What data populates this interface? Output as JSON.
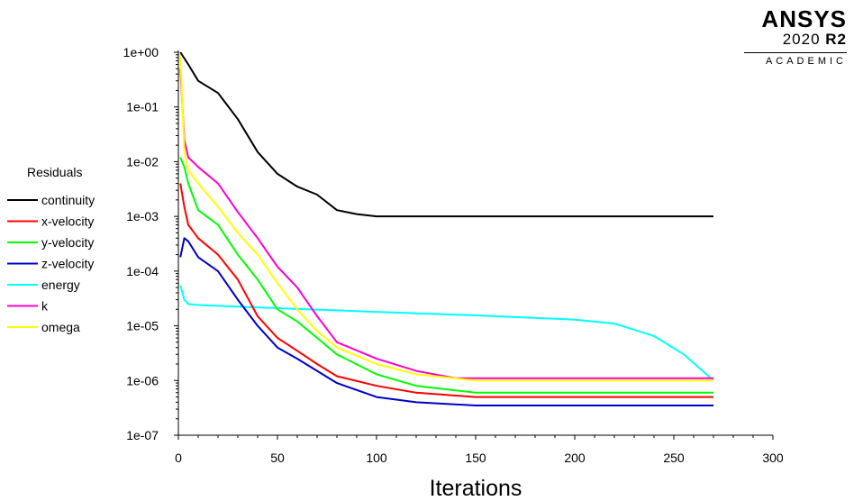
{
  "branding": {
    "product": "ANSYS",
    "version_year": "2020",
    "version_release": "R2",
    "edition": "ACADEMIC"
  },
  "chart_data": {
    "type": "line",
    "title": "",
    "xlabel": "Iterations",
    "ylabel": "",
    "xlim": [
      0,
      300
    ],
    "ylim_log10": [
      -7,
      0
    ],
    "y_scale": "log",
    "x_ticks": [
      0,
      50,
      100,
      150,
      200,
      250,
      300
    ],
    "y_ticks": [
      {
        "value": 1.0,
        "label": "1e+00"
      },
      {
        "value": 0.1,
        "label": "1e-01"
      },
      {
        "value": 0.01,
        "label": "1e-02"
      },
      {
        "value": 0.001,
        "label": "1e-03"
      },
      {
        "value": 0.0001,
        "label": "1e-04"
      },
      {
        "value": 1e-05,
        "label": "1e-05"
      },
      {
        "value": 1e-06,
        "label": "1e-06"
      },
      {
        "value": 1e-07,
        "label": "1e-07"
      }
    ],
    "grid": false,
    "legend_title": "Residuals",
    "legend_position": "left",
    "series": [
      {
        "name": "continuity",
        "color": "#000000",
        "x": [
          1,
          5,
          10,
          20,
          30,
          40,
          50,
          60,
          70,
          80,
          90,
          100,
          150,
          200,
          250,
          270
        ],
        "y": [
          1.0,
          0.6,
          0.3,
          0.18,
          0.06,
          0.015,
          0.006,
          0.0035,
          0.0025,
          0.0013,
          0.0011,
          0.001,
          0.001,
          0.001,
          0.001,
          0.001
        ]
      },
      {
        "name": "x-velocity",
        "color": "#ff0000",
        "x": [
          1,
          3,
          5,
          10,
          20,
          30,
          40,
          50,
          60,
          70,
          80,
          100,
          120,
          150,
          200,
          250,
          270
        ],
        "y": [
          0.004,
          0.0015,
          0.0007,
          0.0004,
          0.0002,
          7e-05,
          1.5e-05,
          6e-06,
          3.5e-06,
          2e-06,
          1.2e-06,
          8e-07,
          6e-07,
          5e-07,
          5e-07,
          5e-07,
          5e-07
        ]
      },
      {
        "name": "y-velocity",
        "color": "#00ff00",
        "x": [
          1,
          3,
          5,
          10,
          20,
          30,
          40,
          50,
          60,
          70,
          80,
          100,
          120,
          150,
          200,
          250,
          270
        ],
        "y": [
          0.012,
          0.008,
          0.004,
          0.0013,
          0.0007,
          0.0002,
          7e-05,
          2e-05,
          1.2e-05,
          6e-06,
          3e-06,
          1.3e-06,
          8e-07,
          6e-07,
          6e-07,
          6e-07,
          6e-07
        ]
      },
      {
        "name": "z-velocity",
        "color": "#0000cc",
        "x": [
          1,
          3,
          5,
          10,
          20,
          30,
          40,
          50,
          60,
          70,
          80,
          100,
          120,
          150,
          200,
          250,
          270
        ],
        "y": [
          0.00018,
          0.0004,
          0.00035,
          0.00018,
          0.0001,
          3e-05,
          1e-05,
          4e-06,
          2.5e-06,
          1.5e-06,
          9e-07,
          5e-07,
          4e-07,
          3.5e-07,
          3.5e-07,
          3.5e-07,
          3.5e-07
        ]
      },
      {
        "name": "energy",
        "color": "#00ffff",
        "x": [
          1,
          3,
          5,
          10,
          50,
          100,
          150,
          200,
          220,
          240,
          255,
          270
        ],
        "y": [
          5.5e-05,
          3e-05,
          2.5e-05,
          2.4e-05,
          2.1e-05,
          1.8e-05,
          1.55e-05,
          1.3e-05,
          1.1e-05,
          6.5e-06,
          3e-06,
          1e-06
        ]
      },
      {
        "name": "k",
        "color": "#ff00cc",
        "x": [
          1,
          3,
          5,
          10,
          20,
          30,
          40,
          50,
          60,
          70,
          80,
          100,
          120,
          140,
          150,
          200,
          250,
          270
        ],
        "y": [
          0.5,
          0.025,
          0.012,
          0.008,
          0.004,
          0.0012,
          0.0004,
          0.00012,
          5e-05,
          1.5e-05,
          5e-06,
          2.5e-06,
          1.5e-06,
          1.1e-06,
          1.1e-06,
          1.1e-06,
          1.1e-06,
          1.1e-06
        ]
      },
      {
        "name": "omega",
        "color": "#ffff00",
        "x": [
          1,
          3,
          5,
          10,
          20,
          30,
          40,
          50,
          60,
          70,
          80,
          100,
          120,
          150,
          200,
          250,
          270
        ],
        "y": [
          0.9,
          0.015,
          0.007,
          0.004,
          0.0015,
          0.0005,
          0.0002,
          6e-05,
          2e-05,
          8e-06,
          4e-06,
          2e-06,
          1.3e-06,
          1e-06,
          1e-06,
          1e-06,
          1e-06
        ]
      }
    ]
  }
}
